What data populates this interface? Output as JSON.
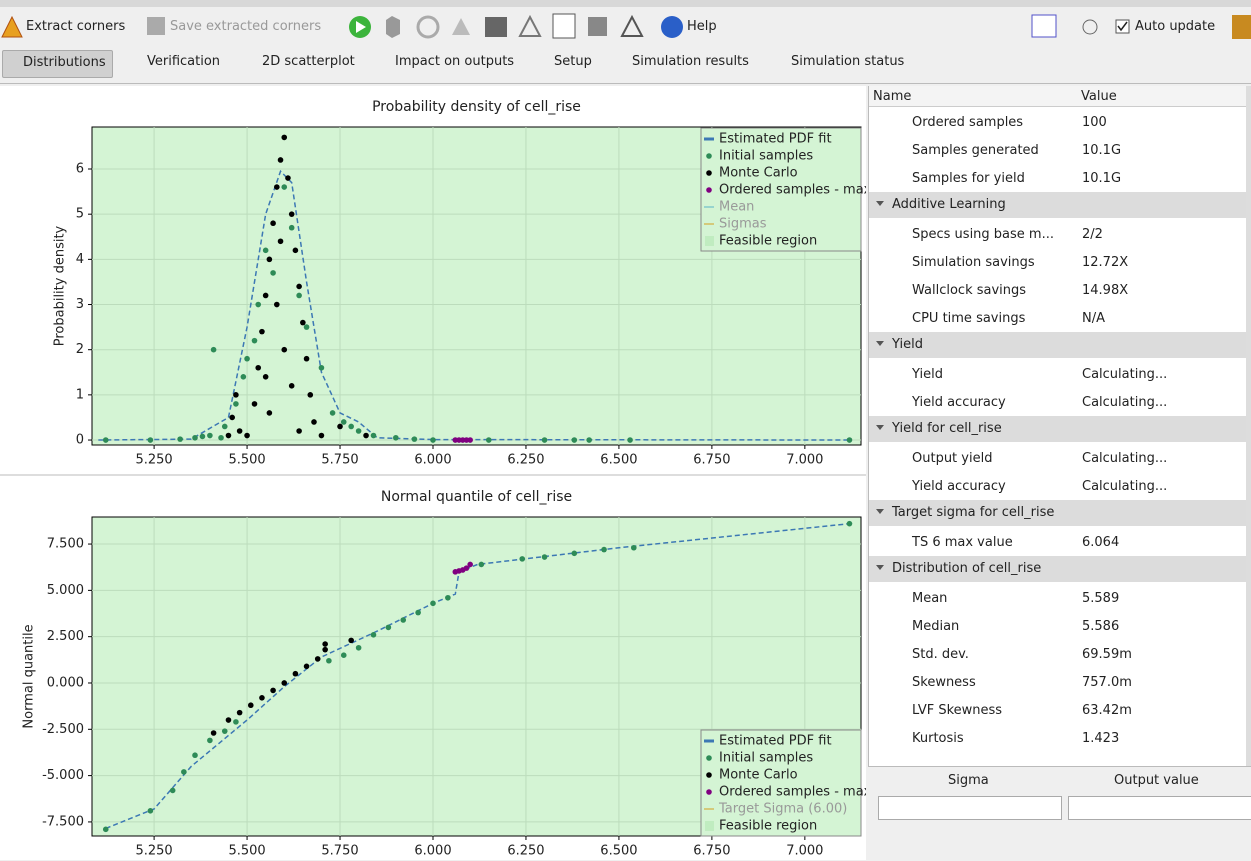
{
  "toolbar": {
    "extract": "Extract corners",
    "save": "Save extracted corners",
    "help": "Help",
    "auto_update": "Auto update"
  },
  "tabs": [
    "Distributions",
    "Verification",
    "2D scatterplot",
    "Impact on outputs",
    "Setup",
    "Simulation results",
    "Simulation status"
  ],
  "chart_data": [
    {
      "type": "scatter",
      "title": "Probability density of cell_rise",
      "ylabel": "Probability density",
      "xlim": [
        5.083,
        7.151
      ],
      "ylim": [
        -0.11,
        6.93
      ],
      "grid": true,
      "legend": "upper right",
      "xticks": [
        {
          "value": 5.25,
          "label": "5.250"
        },
        {
          "value": 5.5,
          "label": "5.500"
        },
        {
          "value": 5.75,
          "label": "5.750"
        },
        {
          "value": 6.0,
          "label": "6.000"
        },
        {
          "value": 6.25,
          "label": "6.250"
        },
        {
          "value": 6.5,
          "label": "6.500"
        },
        {
          "value": 6.75,
          "label": "6.750"
        },
        {
          "value": 7.0,
          "label": "7.000"
        }
      ],
      "yticks": [
        0,
        1,
        2,
        3,
        4,
        5,
        6
      ],
      "series": [
        {
          "name": "Estimated PDF fit",
          "color": "#3c78b4",
          "marker": "dash",
          "x": [
            5.1,
            5.35,
            5.45,
            5.5,
            5.55,
            5.59,
            5.62,
            5.66,
            5.7,
            5.75,
            5.8,
            5.85,
            6.0,
            7.12
          ],
          "values": [
            0,
            0.02,
            0.5,
            2.5,
            5,
            5.95,
            5.7,
            3.5,
            1.5,
            0.6,
            0.4,
            0.05,
            0.01,
            0
          ]
        },
        {
          "name": "Initial samples",
          "color": "#2e8b57",
          "marker": "dot",
          "x": [
            5.12,
            5.24,
            5.32,
            5.36,
            5.38,
            5.4,
            5.43,
            5.44,
            5.47,
            5.49,
            5.5,
            5.52,
            5.53,
            5.55,
            5.57,
            5.6,
            5.62,
            5.64,
            5.66,
            5.7,
            5.73,
            5.76,
            5.8,
            5.84,
            5.9,
            5.95,
            6.0,
            6.15,
            6.3,
            6.38,
            6.42,
            6.53,
            7.12,
            5.41,
            5.78
          ],
          "values": [
            0,
            0,
            0.02,
            0.05,
            0.08,
            0.1,
            0.05,
            0.3,
            0.8,
            1.4,
            1.8,
            2.2,
            3.0,
            4.2,
            3.7,
            5.6,
            4.7,
            3.2,
            2.5,
            1.6,
            0.6,
            0.4,
            0.2,
            0.1,
            0.05,
            0.02,
            0,
            0,
            0,
            0,
            0,
            0,
            0,
            2.0,
            0.3
          ]
        },
        {
          "name": "Monte Carlo",
          "color": "#000000",
          "marker": "dot",
          "x": [
            5.5,
            5.52,
            5.53,
            5.54,
            5.55,
            5.56,
            5.57,
            5.58,
            5.59,
            5.6,
            5.61,
            5.62,
            5.63,
            5.64,
            5.65,
            5.66,
            5.67,
            5.68,
            5.46,
            5.47,
            5.48,
            5.45,
            5.58,
            5.6,
            5.62,
            5.56,
            5.64,
            5.7,
            5.75,
            5.82,
            5.59,
            5.55
          ],
          "values": [
            0.1,
            0.8,
            1.6,
            2.4,
            3.2,
            4.0,
            4.8,
            5.6,
            6.2,
            6.7,
            5.8,
            5.0,
            4.2,
            3.4,
            2.6,
            1.8,
            1.0,
            0.4,
            0.5,
            1.0,
            0.2,
            0.1,
            3.0,
            2.0,
            1.2,
            0.6,
            0.2,
            0.1,
            0.3,
            0.1,
            4.4,
            1.4
          ]
        },
        {
          "name": "Ordered samples - max",
          "color": "#800080",
          "marker": "dot",
          "x": [
            6.06,
            6.07,
            6.08,
            6.09,
            6.1
          ],
          "values": [
            0,
            0,
            0,
            0,
            0
          ]
        },
        {
          "name": "Mean",
          "color": "#5ab4c8",
          "marker": "line",
          "dimmed": true,
          "x": [],
          "values": []
        },
        {
          "name": "Sigmas",
          "color": "#d4a020",
          "marker": "line",
          "dimmed": true,
          "x": [],
          "values": []
        },
        {
          "name": "Feasible region",
          "color": "#d4f4d4",
          "marker": "patch",
          "x": [],
          "values": []
        }
      ]
    },
    {
      "type": "scatter",
      "title": "Normal quantile of cell_rise",
      "ylabel": "Normal quantile",
      "xlim": [
        5.083,
        7.151
      ],
      "ylim": [
        -8.26,
        8.96
      ],
      "grid": true,
      "legend": "lower right",
      "xticks": [
        {
          "value": 5.25,
          "label": "5.250"
        },
        {
          "value": 5.5,
          "label": "5.500"
        },
        {
          "value": 5.75,
          "label": "5.750"
        },
        {
          "value": 6.0,
          "label": "6.000"
        },
        {
          "value": 6.25,
          "label": "6.250"
        },
        {
          "value": 6.5,
          "label": "6.500"
        },
        {
          "value": 6.75,
          "label": "6.750"
        },
        {
          "value": 7.0,
          "label": "7.000"
        }
      ],
      "yticks": [
        {
          "value": 7.5,
          "label": "7.500"
        },
        {
          "value": 5,
          "label": "5.000"
        },
        {
          "value": 2.5,
          "label": "2.500"
        },
        {
          "value": 0,
          "label": "0.000"
        },
        {
          "value": -2.5,
          "label": "-2.500"
        },
        {
          "value": -5,
          "label": "-5.000"
        },
        {
          "value": -7.5,
          "label": "-7.500"
        }
      ],
      "series": [
        {
          "name": "Estimated PDF fit",
          "color": "#3c78b4",
          "marker": "dash",
          "x": [
            5.12,
            5.25,
            5.35,
            5.5,
            5.6,
            5.7,
            5.85,
            6.0,
            6.06,
            6.07,
            6.12,
            6.5,
            7.12
          ],
          "values": [
            -7.85,
            -6.8,
            -4.5,
            -2,
            -0.2,
            1.4,
            2.8,
            4.3,
            4.8,
            6.0,
            6.4,
            7.3,
            8.6
          ]
        },
        {
          "name": "Initial samples",
          "color": "#2e8b57",
          "marker": "dot",
          "x": [
            5.12,
            5.24,
            5.3,
            5.33,
            5.36,
            5.4,
            5.44,
            5.47,
            5.72,
            5.76,
            5.8,
            5.84,
            5.88,
            5.92,
            5.96,
            6.0,
            6.04,
            6.13,
            6.24,
            6.3,
            6.38,
            6.46,
            6.54,
            7.12
          ],
          "values": [
            -7.9,
            -6.9,
            -5.8,
            -4.8,
            -3.9,
            -3.1,
            -2.6,
            -2.1,
            1.2,
            1.5,
            1.9,
            2.6,
            3.0,
            3.4,
            3.8,
            4.3,
            4.6,
            6.4,
            6.7,
            6.8,
            7.0,
            7.2,
            7.3,
            8.6
          ]
        },
        {
          "name": "Monte Carlo",
          "color": "#000000",
          "marker": "dot",
          "x": [
            5.41,
            5.45,
            5.48,
            5.51,
            5.54,
            5.57,
            5.6,
            5.63,
            5.66,
            5.69,
            5.71,
            5.71,
            5.78
          ],
          "values": [
            -2.7,
            -2.0,
            -1.6,
            -1.2,
            -0.8,
            -0.4,
            0.0,
            0.5,
            0.9,
            1.3,
            1.8,
            2.1,
            2.3
          ]
        },
        {
          "name": "Ordered samples - max",
          "color": "#800080",
          "marker": "dot",
          "x": [
            6.06,
            6.07,
            6.08,
            6.09,
            6.1
          ],
          "values": [
            6.0,
            6.05,
            6.1,
            6.2,
            6.4
          ]
        },
        {
          "name": "Target Sigma (6.00)",
          "color": "#d4a020",
          "marker": "line",
          "dimmed": true,
          "x": [],
          "values": []
        },
        {
          "name": "Feasible region",
          "color": "#d4f4d4",
          "marker": "patch",
          "x": [],
          "values": []
        }
      ]
    }
  ],
  "properties": {
    "header": [
      "Name",
      "Value"
    ],
    "rows": [
      {
        "name": "Ordered samples",
        "value": "100"
      },
      {
        "name": "Samples generated",
        "value": "10.1G"
      },
      {
        "name": "Samples for yield",
        "value": "10.1G"
      },
      {
        "group": "Additive Learning"
      },
      {
        "name": "Specs using base m...",
        "value": "2/2"
      },
      {
        "name": "Simulation savings",
        "value": "12.72X"
      },
      {
        "name": "Wallclock savings",
        "value": "14.98X"
      },
      {
        "name": "CPU time savings",
        "value": "N/A"
      },
      {
        "group": "Yield"
      },
      {
        "name": "Yield",
        "value": "Calculating..."
      },
      {
        "name": "Yield accuracy",
        "value": "Calculating..."
      },
      {
        "group": "Yield for cell_rise"
      },
      {
        "name": "Output yield",
        "value": "Calculating..."
      },
      {
        "name": "Yield accuracy",
        "value": "Calculating..."
      },
      {
        "group": "Target sigma for cell_rise"
      },
      {
        "name": "TS 6 max value",
        "value": "6.064"
      },
      {
        "group": "Distribution of cell_rise"
      },
      {
        "name": "Mean",
        "value": "5.589"
      },
      {
        "name": "Median",
        "value": "5.586"
      },
      {
        "name": "Std. dev.",
        "value": "69.59m"
      },
      {
        "name": "Skewness",
        "value": "757.0m"
      },
      {
        "name": "LVF Skewness",
        "value": "63.42m"
      },
      {
        "name": "Kurtosis",
        "value": "1.423"
      }
    ]
  },
  "output_panel": {
    "header": [
      "Sigma",
      "Output value"
    ]
  }
}
